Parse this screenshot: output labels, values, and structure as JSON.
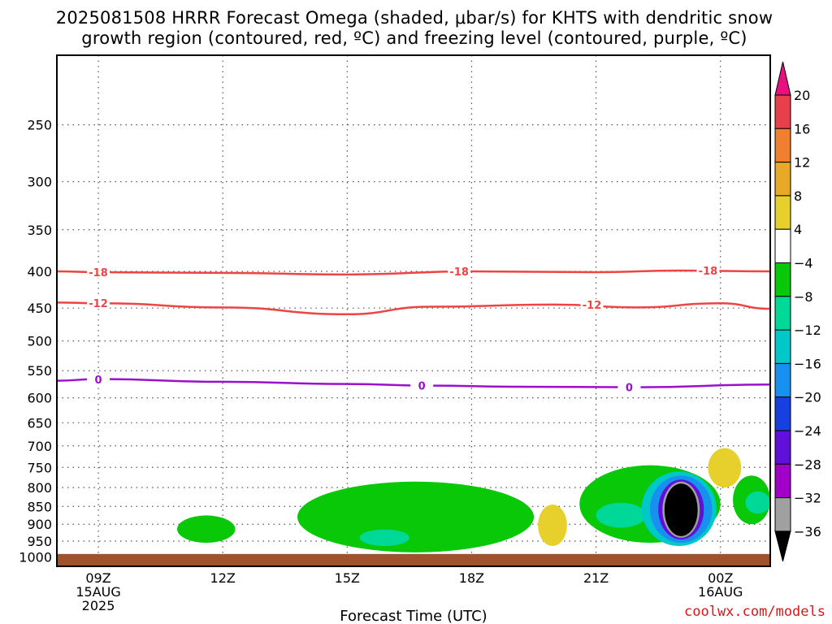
{
  "title_line1": "2025081508 HRRR Forecast Omega (shaded, μbar/s) for KHTS with dendritic snow",
  "title_line2": "growth region (contoured, red, ºC) and freezing level (contoured, purple, ºC)",
  "watermark": "coolwx.com/models",
  "chart_data": {
    "type": "contour",
    "xlabel": "Forecast Time (UTC)",
    "ylabel": "",
    "y_axis": "pressure (mb), inverted",
    "ylim": [
      1030,
      200
    ],
    "xlim_hours": [
      8,
      25.2
    ],
    "grid": true,
    "x_ticks": [
      {
        "h": 9,
        "lines": [
          "09Z",
          "15AUG",
          "2025"
        ]
      },
      {
        "h": 12,
        "lines": [
          "12Z"
        ]
      },
      {
        "h": 15,
        "lines": [
          "15Z"
        ]
      },
      {
        "h": 18,
        "lines": [
          "18Z"
        ]
      },
      {
        "h": 21,
        "lines": [
          "21Z"
        ]
      },
      {
        "h": 24,
        "lines": [
          "00Z",
          "16AUG"
        ]
      }
    ],
    "y_ticks": [
      250,
      300,
      350,
      400,
      450,
      500,
      550,
      600,
      650,
      700,
      750,
      800,
      850,
      900,
      950,
      1000
    ],
    "surface_fill": {
      "top_p": 990,
      "color": "#a0522d"
    },
    "colorbar": {
      "labels": [
        "20",
        "16",
        "12",
        "8",
        "4",
        "−4",
        "−8",
        "−12",
        "−16",
        "−20",
        "−24",
        "−28",
        "−32",
        "−36"
      ],
      "colors": [
        "#e8404a",
        "#f08030",
        "#e8a828",
        "#e8d02c",
        "#ffffff",
        "#08c808",
        "#00d898",
        "#00c8c8",
        "#1890f0",
        "#1840e0",
        "#6010d8",
        "#a000c8",
        "#a0a0a0"
      ],
      "top_arrow_color": "#e8107e",
      "bottom_arrow_color": "#000000"
    },
    "contours": [
      {
        "name": "-18",
        "color": "#ee4444",
        "points": [
          [
            8,
            400
          ],
          [
            9,
            401
          ],
          [
            12,
            402
          ],
          [
            15,
            404
          ],
          [
            18,
            400
          ],
          [
            21,
            401
          ],
          [
            23,
            399
          ],
          [
            25.2,
            400
          ]
        ],
        "labels": [
          [
            9,
            401
          ],
          [
            17.7,
            400
          ],
          [
            23.7,
            399
          ]
        ]
      },
      {
        "name": "-12",
        "color": "#ee4444",
        "points": [
          [
            8,
            442
          ],
          [
            9,
            443
          ],
          [
            12,
            449
          ],
          [
            15,
            459
          ],
          [
            17,
            448
          ],
          [
            20,
            445
          ],
          [
            22,
            449
          ],
          [
            24,
            443
          ],
          [
            25.2,
            451
          ]
        ],
        "labels": [
          [
            9,
            443
          ],
          [
            20.9,
            445
          ]
        ]
      },
      {
        "name": "0",
        "color": "#9a10cc",
        "points": [
          [
            8,
            568
          ],
          [
            9,
            565
          ],
          [
            12,
            570
          ],
          [
            15,
            574
          ],
          [
            17,
            577
          ],
          [
            19,
            579
          ],
          [
            22,
            580
          ],
          [
            25.2,
            575
          ]
        ],
        "labels": [
          [
            9,
            566
          ],
          [
            16.8,
            577
          ],
          [
            21.8,
            580
          ]
        ]
      }
    ],
    "omega_shading": [
      {
        "level": -4,
        "color": "#08c808",
        "x_range": [
          10.9,
          12.3
        ],
        "p_range": [
          875,
          955
        ]
      },
      {
        "level": -4,
        "color": "#08c808",
        "x_range": [
          13.8,
          19.5
        ],
        "p_range": [
          785,
          985
        ]
      },
      {
        "level": -8,
        "color": "#00d898",
        "x_range": [
          15.3,
          16.5
        ],
        "p_range": [
          915,
          965
        ]
      },
      {
        "level": -4,
        "color": "#08c808",
        "x_range": [
          20.6,
          24.0
        ],
        "p_range": [
          745,
          955
        ]
      },
      {
        "level": -8,
        "color": "#00d898",
        "x_range": [
          21.0,
          22.2
        ],
        "p_range": [
          840,
          910
        ]
      },
      {
        "level": -12,
        "color": "#00c8c8",
        "x_range": [
          22.1,
          23.9
        ],
        "p_range": [
          760,
          965
        ]
      },
      {
        "level": -16,
        "color": "#1890f0",
        "x_range": [
          22.3,
          23.8
        ],
        "p_range": [
          770,
          955
        ]
      },
      {
        "level": -24,
        "color": "#6010d8",
        "x_range": [
          22.5,
          23.6
        ],
        "p_range": [
          780,
          945
        ]
      },
      {
        "level": -32,
        "color": "#a0a0a0",
        "x_range": [
          22.6,
          23.5
        ],
        "p_range": [
          785,
          940
        ]
      },
      {
        "level": -36,
        "color": "#000000",
        "x_range": [
          22.65,
          23.45
        ],
        "p_range": [
          790,
          935
        ]
      },
      {
        "level": -4,
        "color": "#08c808",
        "x_range": [
          24.3,
          25.2
        ],
        "p_range": [
          770,
          900
        ]
      },
      {
        "level": -8,
        "color": "#00d898",
        "x_range": [
          24.6,
          25.2
        ],
        "p_range": [
          810,
          870
        ]
      },
      {
        "level": 4,
        "color": "#e8d02c",
        "x_range": [
          19.6,
          20.3
        ],
        "p_range": [
          845,
          965
        ]
      },
      {
        "level": 4,
        "color": "#e8d02c",
        "x_range": [
          23.7,
          24.5
        ],
        "p_range": [
          705,
          800
        ]
      }
    ]
  }
}
